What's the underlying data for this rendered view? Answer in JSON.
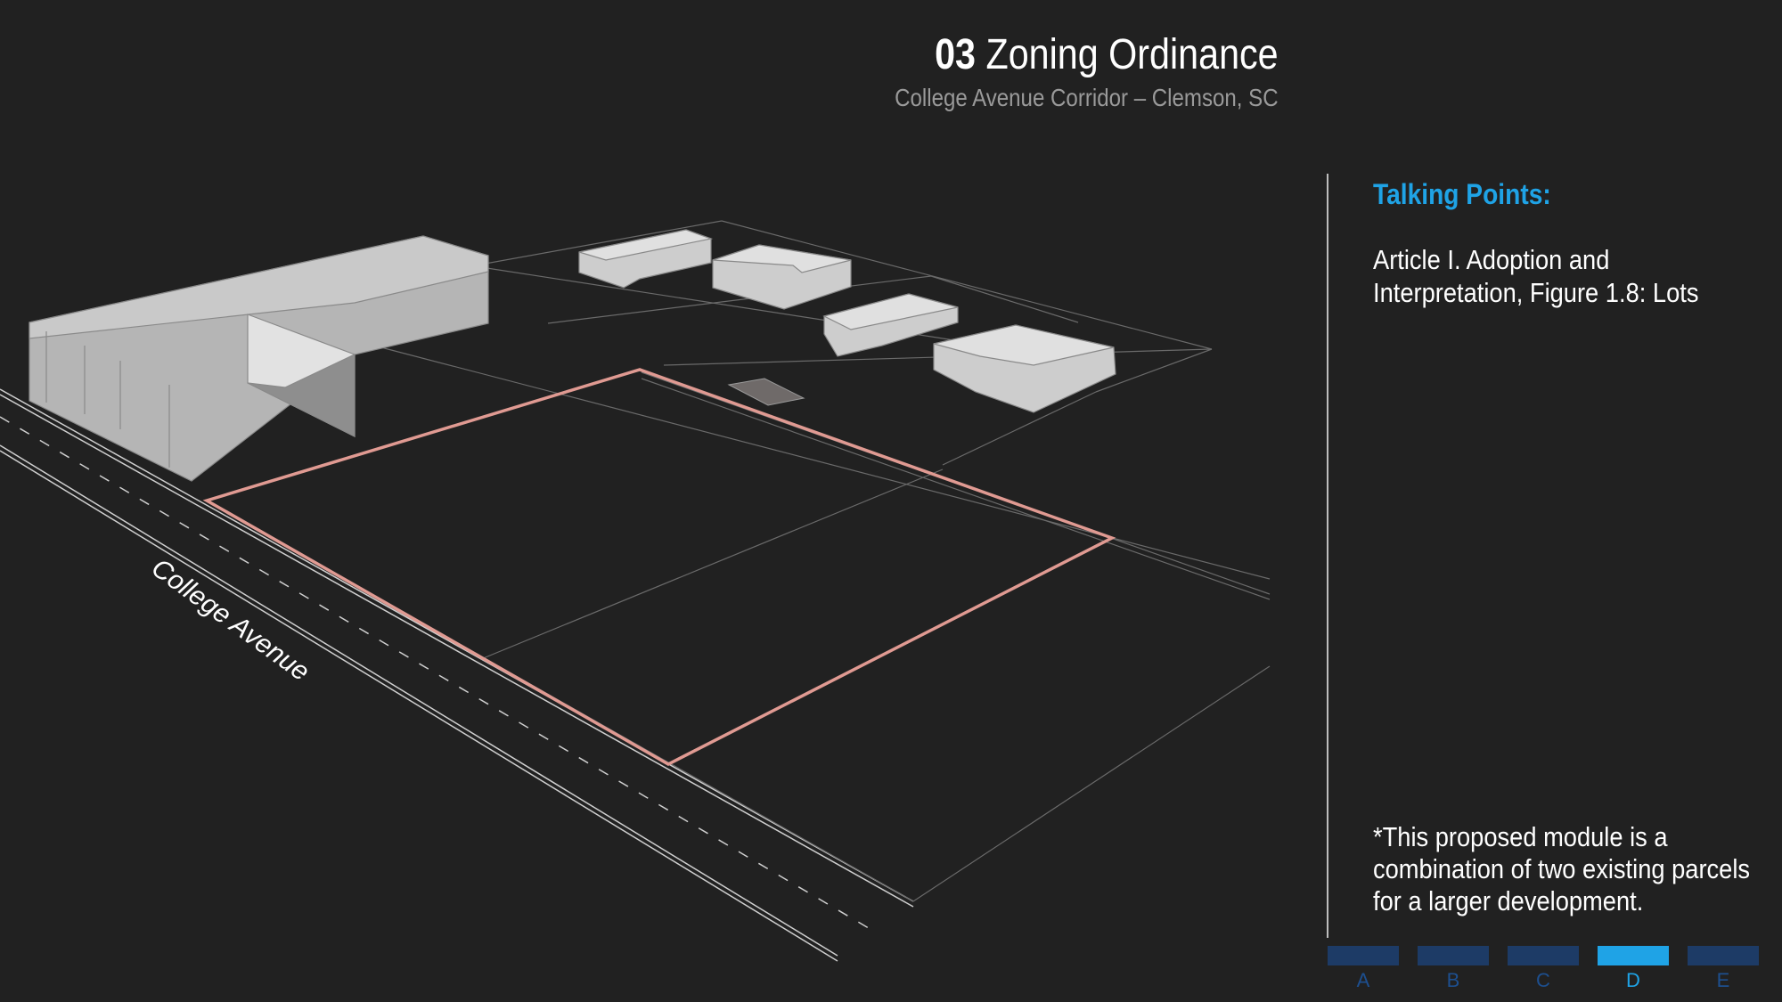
{
  "header": {
    "number": "03",
    "title": "Zoning Ordinance",
    "subtitle": "College Avenue Corridor – Clemson, SC"
  },
  "diagram": {
    "street_label": "College Avenue",
    "highlight_color": "#e09a92"
  },
  "sidebar": {
    "heading": "Talking Points:",
    "body": "Article I. Adoption and Interpretation, Figure 1.8: Lots",
    "note": "*This proposed module is a combination of two existing parcels for a larger development."
  },
  "nav": {
    "tabs": [
      "A",
      "B",
      "C",
      "D",
      "E"
    ],
    "active": "D"
  },
  "colors": {
    "background": "#212121",
    "accent": "#1fa3e6",
    "inactive_tab": "#1d3b66"
  }
}
